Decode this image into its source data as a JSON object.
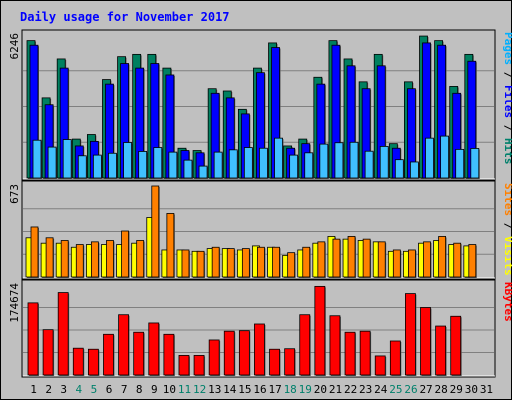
{
  "chart_data": {
    "type": "bar",
    "title": "Daily usage for November 2017",
    "categories": [
      "1",
      "2",
      "3",
      "4",
      "5",
      "6",
      "7",
      "8",
      "9",
      "10",
      "11",
      "12",
      "13",
      "14",
      "15",
      "16",
      "17",
      "18",
      "19",
      "20",
      "21",
      "22",
      "23",
      "24",
      "25",
      "26",
      "27",
      "28",
      "29",
      "30",
      "31"
    ],
    "weekend_days": [
      "4",
      "5",
      "11",
      "12",
      "18",
      "19",
      "25",
      "26"
    ],
    "panels": [
      {
        "id": "traffic",
        "max_label": "6246",
        "ymax": 6246,
        "right_labels": [
          {
            "text": "Pages",
            "color": "#00b0ff"
          },
          {
            "text": " / ",
            "color": "#000000"
          },
          {
            "text": "Files",
            "color": "#0000ff"
          },
          {
            "text": " / ",
            "color": "#000000"
          },
          {
            "text": "Hits",
            "color": "#00806b"
          }
        ],
        "series": [
          {
            "name": "Hits",
            "color": "#008060",
            "values": [
              6000,
              3500,
              5200,
              1700,
              1900,
              4300,
              5300,
              5400,
              5400,
              4800,
              1300,
              1200,
              3900,
              3800,
              3000,
              4800,
              5900,
              1400,
              1700,
              4400,
              6000,
              5200,
              4200,
              5400,
              1500,
              4200,
              6200,
              6000,
              4000,
              5400,
              0
            ]
          },
          {
            "name": "Files",
            "color": "#0000ff",
            "values": [
              5800,
              3200,
              4800,
              1400,
              1600,
              4100,
              5000,
              4800,
              5000,
              4500,
              1200,
              1100,
              3700,
              3500,
              2800,
              4600,
              5700,
              1300,
              1500,
              4100,
              5800,
              4900,
              3900,
              4900,
              1300,
              3900,
              5900,
              5800,
              3700,
              5100,
              0
            ]
          },
          {
            "name": "Pages",
            "color": "#40c0ff",
            "values": [
              1650,
              1350,
              1680,
              970,
              1000,
              1080,
              1550,
              1160,
              1330,
              1130,
              780,
              520,
              1130,
              1230,
              1330,
              1300,
              1740,
              1000,
              1100,
              1480,
              1540,
              1560,
              1170,
              1380,
              800,
              700,
              1740,
              1830,
              1250,
              1290,
              0
            ]
          }
        ]
      },
      {
        "id": "sites-visits",
        "max_label": "673",
        "ymax": 673,
        "right_labels": [
          {
            "text": "Sites",
            "color": "#ff8000"
          },
          {
            "text": " / ",
            "color": "#000000"
          },
          {
            "text": "Visits",
            "color": "#ffff00"
          }
        ],
        "series": [
          {
            "name": "Visits",
            "color": "#ffff00",
            "values": [
              290,
              250,
              250,
              220,
              240,
              240,
              240,
              250,
              440,
              200,
              200,
              190,
              210,
              210,
              200,
              230,
              220,
              160,
              200,
              250,
              300,
              280,
              270,
              260,
              190,
              190,
              250,
              270,
              240,
              230,
              0
            ]
          },
          {
            "name": "Sites",
            "color": "#ff8000",
            "values": [
              370,
              290,
              270,
              240,
              260,
              270,
              340,
              270,
              673,
              470,
              200,
              190,
              220,
              210,
              210,
              220,
              220,
              180,
              220,
              260,
              280,
              300,
              280,
              260,
              200,
              200,
              260,
              300,
              250,
              240,
              0
            ]
          }
        ]
      },
      {
        "id": "kbytes",
        "max_label": "174674",
        "ymax": 174674,
        "right_labels": [
          {
            "text": "KBytes",
            "color": "#ff0000"
          }
        ],
        "series": [
          {
            "name": "KBytes",
            "color": "#ff0000",
            "values": [
              140000,
              88000,
              160000,
              52000,
              50000,
              79000,
              117000,
              83000,
              101000,
              79000,
              38000,
              38000,
              68000,
              85000,
              86000,
              99000,
              50000,
              51000,
              117000,
              172000,
              115000,
              83000,
              85000,
              37000,
              66000,
              158000,
              131000,
              95000,
              114000,
              0,
              0
            ]
          }
        ]
      }
    ]
  }
}
